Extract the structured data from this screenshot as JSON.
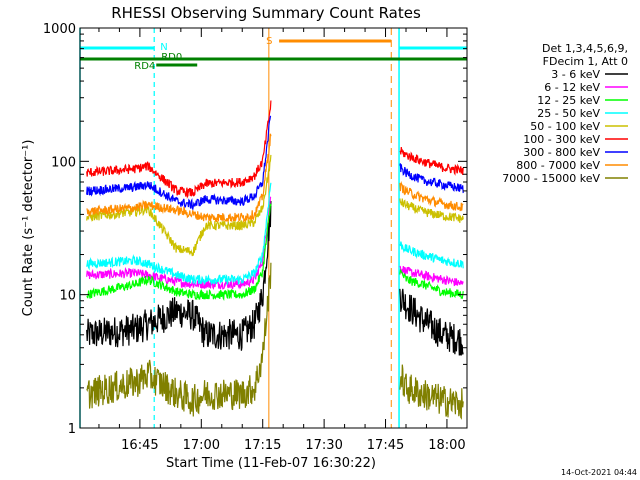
{
  "chart_data": {
    "type": "line",
    "title": "RHESSI Observing Summary Count Rates",
    "xlabel": "Start Time (11-Feb-07 16:30:22)",
    "ylabel": "Count Rate (s⁻¹ detector⁻¹)",
    "yscale": "log",
    "ylim": [
      1,
      1000
    ],
    "xlim_minutes_after_1630": [
      0.37,
      94.9
    ],
    "x_tick_labels": [
      "16:45",
      "17:00",
      "17:15",
      "17:30",
      "17:45",
      "18:00"
    ],
    "x_tick_minutes": [
      15,
      30,
      45,
      60,
      75,
      90
    ],
    "y_tick_labels": [
      "1",
      "10",
      "100",
      "1000"
    ],
    "y_tick_values": [
      1,
      10,
      100,
      1000
    ],
    "grid": false,
    "legend_position": "right",
    "legend_header": [
      "Det 1,3,4,5,6,9,",
      "FDecim 1, Att 0"
    ],
    "timestamp": "14-Oct-2021 04:44",
    "annotations": {
      "night": {
        "label": "N",
        "color": "#00ffff",
        "bars": [
          [
            0.37,
            18.5
          ],
          [
            78.3,
            94.9
          ]
        ],
        "lines": [
          18.5,
          78.3
        ]
      },
      "saa": {
        "label": "S",
        "color": "#ff8c00",
        "bars": [
          [
            49.0,
            76.4
          ]
        ],
        "lines": [
          46.5,
          76.4
        ]
      },
      "rd0": {
        "label": "RD0",
        "color": "#008000",
        "bars": [
          [
            0.37,
            24.8
          ],
          [
            24.8,
            94.9
          ]
        ]
      },
      "rd4": {
        "label": "RD4",
        "color": "#008000",
        "bars": [
          [
            19.0,
            29.0
          ]
        ]
      },
      "cyan_night_boundaries": [
        0.37,
        78.3
      ],
      "dashed_night_ends": [
        18.5,
        94.9
      ]
    },
    "series": [
      {
        "name": "3 - 6 keV",
        "color": "#000000",
        "segments": [
          {
            "x": [
              2,
              14,
              17,
              24,
              28,
              31,
              40,
              43,
              45,
              47
            ],
            "y": [
              5.0,
              5.5,
              6.0,
              7.5,
              7.0,
              5.0,
              5.0,
              6.0,
              10,
              45
            ]
          },
          {
            "x": [
              78.5,
              80,
              84,
              89,
              94
            ],
            "y": [
              10,
              8.5,
              6.5,
              5.0,
              4.5
            ]
          }
        ]
      },
      {
        "name": "6 - 12 keV",
        "color": "#ff00ff",
        "segments": [
          {
            "x": [
              2,
              14,
              17,
              24,
              28,
              31,
              40,
              43,
              45,
              47
            ],
            "y": [
              14,
              14.5,
              14,
              12.5,
              12,
              12,
              12,
              13,
              18,
              55
            ]
          },
          {
            "x": [
              78.5,
              80,
              84,
              89,
              94
            ],
            "y": [
              16,
              15,
              14,
              13,
              12
            ]
          }
        ]
      },
      {
        "name": "12 - 25 keV",
        "color": "#00ff00",
        "segments": [
          {
            "x": [
              2,
              14,
              17,
              24,
              28,
              31,
              40,
              43,
              45,
              47
            ],
            "y": [
              10,
              12,
              13,
              10.5,
              10,
              10,
              10,
              11,
              15,
              50
            ]
          },
          {
            "x": [
              78.5,
              80,
              84,
              89,
              94
            ],
            "y": [
              15,
              13,
              12,
              10.5,
              10
            ]
          }
        ]
      },
      {
        "name": "25 - 50 keV",
        "color": "#00ffff",
        "segments": [
          {
            "x": [
              2,
              14,
              17,
              24,
              28,
              31,
              40,
              43,
              45,
              47
            ],
            "y": [
              17,
              18,
              17,
              14,
              13,
              13,
              13,
              14.5,
              20,
              70
            ]
          },
          {
            "x": [
              78.5,
              80,
              84,
              89,
              94
            ],
            "y": [
              24,
              22,
              20,
              18,
              17
            ]
          }
        ]
      },
      {
        "name": "50 - 100 keV",
        "color": "#ccc000",
        "segments": [
          {
            "x": [
              2,
              14,
              17,
              24,
              28,
              31,
              40,
              43,
              45,
              47
            ],
            "y": [
              38,
              42,
              44,
              22,
              21,
              33,
              33,
              35,
              45,
              105
            ]
          },
          {
            "x": [
              78.5,
              80,
              84,
              89,
              94
            ],
            "y": [
              50,
              47,
              42,
              39,
              37
            ]
          }
        ]
      },
      {
        "name": "100 - 300 keV",
        "color": "#ff0000",
        "segments": [
          {
            "x": [
              2,
              14,
              17,
              24,
              28,
              31,
              40,
              43,
              45,
              47
            ],
            "y": [
              82,
              88,
              92,
              60,
              58,
              68,
              70,
              78,
              100,
              270
            ]
          },
          {
            "x": [
              78.5,
              80,
              84,
              89,
              94
            ],
            "y": [
              120,
              112,
              100,
              90,
              85
            ]
          }
        ]
      },
      {
        "name": "300 - 800 keV",
        "color": "#0000ff",
        "segments": [
          {
            "x": [
              2,
              14,
              17,
              24,
              28,
              31,
              40,
              43,
              45,
              47
            ],
            "y": [
              60,
              64,
              67,
              50,
              47,
              52,
              50,
              55,
              70,
              230
            ]
          },
          {
            "x": [
              78.5,
              80,
              84,
              89,
              94
            ],
            "y": [
              90,
              82,
              72,
              67,
              62
            ]
          }
        ]
      },
      {
        "name": "800 - 7000 keV",
        "color": "#ff8c00",
        "segments": [
          {
            "x": [
              2,
              14,
              17,
              24,
              28,
              31,
              40,
              43,
              45,
              47
            ],
            "y": [
              42,
              45,
              47,
              43,
              40,
              38,
              38,
              40,
              55,
              160
            ]
          },
          {
            "x": [
              78.5,
              80,
              84,
              89,
              94
            ],
            "y": [
              65,
              60,
              53,
              48,
              45
            ]
          }
        ]
      },
      {
        "name": "7000 - 15000 keV",
        "color": "#808000",
        "segments": [
          {
            "x": [
              2,
              14,
              17,
              24,
              28,
              31,
              40,
              43,
              45,
              47
            ],
            "y": [
              1.8,
              2.2,
              2.5,
              1.8,
              1.6,
              1.8,
              1.8,
              2.0,
              3.5,
              15
            ]
          },
          {
            "x": [
              78.5,
              80,
              84,
              89,
              94
            ],
            "y": [
              2.5,
              2.0,
              1.8,
              1.6,
              1.5
            ]
          }
        ]
      }
    ]
  }
}
